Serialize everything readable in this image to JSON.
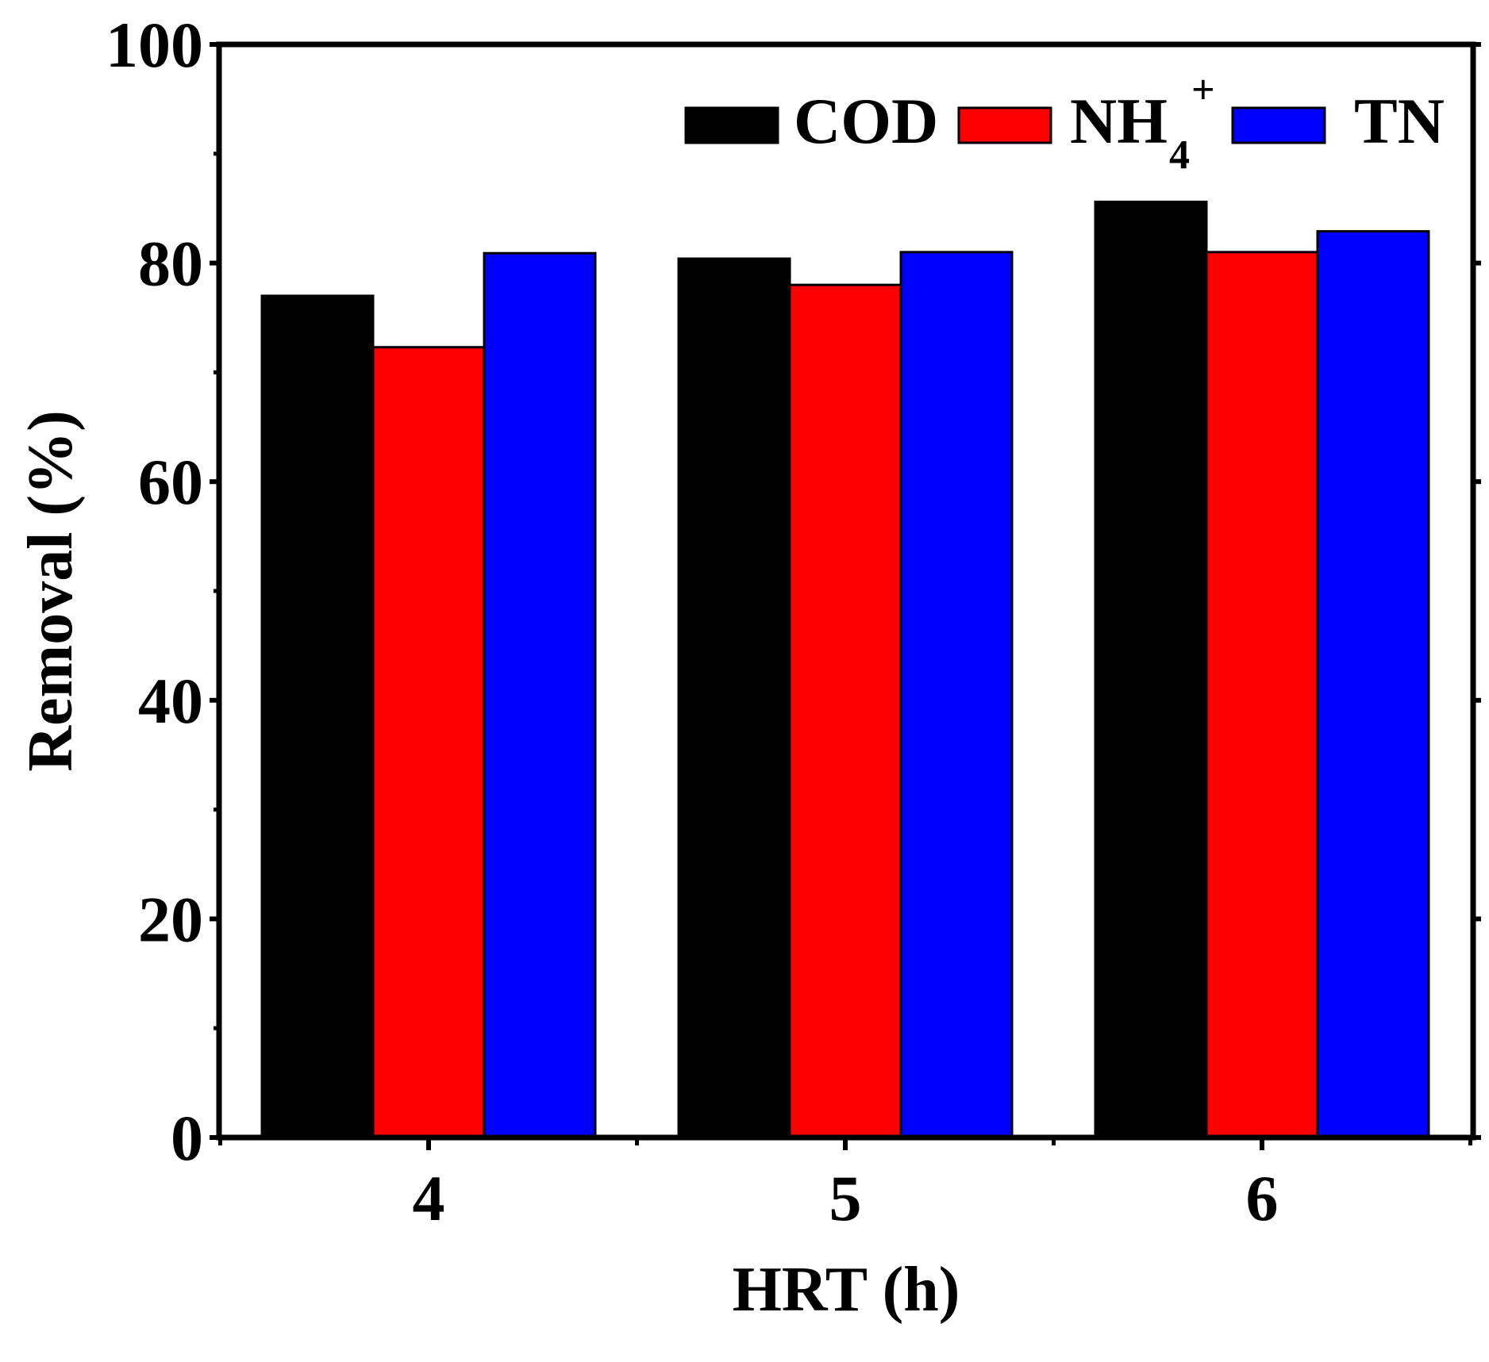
{
  "chart_data": {
    "type": "bar",
    "title": "",
    "xlabel": "HRT (h)",
    "ylabel": "Removal (%)",
    "ylim": [
      0,
      100
    ],
    "yticks": [
      0,
      20,
      40,
      60,
      80,
      100
    ],
    "categories": [
      "4",
      "5",
      "6"
    ],
    "series": [
      {
        "name": "COD",
        "sub": "",
        "sup": "",
        "color": "#000000",
        "values": [
          77.0,
          80.4,
          85.6
        ]
      },
      {
        "name": "NH",
        "sub": "4",
        "sup": "+",
        "color": "#ff0000",
        "values": [
          72.3,
          78.0,
          81.0
        ]
      },
      {
        "name": "TN",
        "sub": "",
        "sup": "",
        "color": "#0000ff",
        "values": [
          80.9,
          81.0,
          82.9
        ]
      }
    ],
    "legend": "top-right",
    "grid": false
  }
}
